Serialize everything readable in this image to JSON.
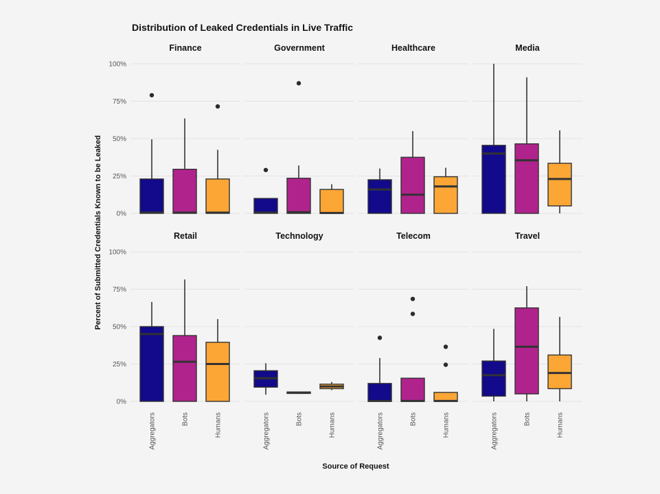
{
  "chart_data": {
    "type": "boxplot",
    "title": "Distribution of Leaked Credentials in Live Traffic",
    "xlabel": "Source of Request",
    "ylabel": "Percent of Submitted Credentials Known to be Leaked",
    "ylim": [
      0,
      100
    ],
    "yticks": [
      "0%",
      "25%",
      "50%",
      "75%",
      "100%"
    ],
    "categories": [
      "Aggregators",
      "Bots",
      "Humans"
    ],
    "colors": {
      "Aggregators": "#120a8a",
      "Bots": "#b0238c",
      "Humans": "#fca636"
    },
    "grid": true,
    "facets": [
      {
        "name": "Finance",
        "boxes": [
          {
            "min": 0,
            "q1": 0,
            "median": 0.5,
            "q3": 23,
            "max": 49.5,
            "outliers": [
              79
            ]
          },
          {
            "min": 0,
            "q1": 0,
            "median": 0.5,
            "q3": 29.5,
            "max": 63.5,
            "outliers": []
          },
          {
            "min": 0,
            "q1": 0,
            "median": 0.5,
            "q3": 23,
            "max": 42.5,
            "outliers": [
              71.5
            ]
          }
        ]
      },
      {
        "name": "Government",
        "boxes": [
          {
            "min": 0,
            "q1": 0,
            "median": 0.5,
            "q3": 10,
            "max": 10,
            "outliers": [
              29
            ]
          },
          {
            "min": 0,
            "q1": 0,
            "median": 0.8,
            "q3": 23.5,
            "max": 32,
            "outliers": [
              87
            ]
          },
          {
            "min": 0,
            "q1": 0,
            "median": 0.3,
            "q3": 16,
            "max": 19.5,
            "outliers": []
          }
        ]
      },
      {
        "name": "Healthcare",
        "boxes": [
          {
            "min": 0,
            "q1": 0,
            "median": 16,
            "q3": 22.5,
            "max": 30,
            "outliers": []
          },
          {
            "min": 0,
            "q1": 0,
            "median": 12.5,
            "q3": 37.5,
            "max": 55,
            "outliers": []
          },
          {
            "min": 0,
            "q1": 0,
            "median": 18,
            "q3": 24.5,
            "max": 30.5,
            "outliers": []
          }
        ]
      },
      {
        "name": "Media",
        "boxes": [
          {
            "min": 0,
            "q1": 0,
            "median": 40,
            "q3": 45.5,
            "max": 100,
            "outliers": []
          },
          {
            "min": 0,
            "q1": 0,
            "median": 35.5,
            "q3": 46.5,
            "max": 91,
            "outliers": []
          },
          {
            "min": 0,
            "q1": 5,
            "median": 23,
            "q3": 33.5,
            "max": 55.5,
            "outliers": []
          }
        ]
      },
      {
        "name": "Retail",
        "boxes": [
          {
            "min": 0,
            "q1": 0,
            "median": 45,
            "q3": 50,
            "max": 66.5,
            "outliers": []
          },
          {
            "min": 0,
            "q1": 0,
            "median": 26.5,
            "q3": 44,
            "max": 81.5,
            "outliers": []
          },
          {
            "min": 0,
            "q1": 0,
            "median": 25,
            "q3": 39.5,
            "max": 55,
            "outliers": []
          }
        ]
      },
      {
        "name": "Technology",
        "boxes": [
          {
            "min": 4.5,
            "q1": 9.5,
            "median": 15.5,
            "q3": 20.5,
            "max": 25.5,
            "outliers": []
          },
          {
            "min": 5,
            "q1": 5.3,
            "median": 5.8,
            "q3": 6.3,
            "max": 6.5,
            "outliers": []
          },
          {
            "min": 7.5,
            "q1": 8.5,
            "median": 10,
            "q3": 11.5,
            "max": 13,
            "outliers": []
          }
        ]
      },
      {
        "name": "Telecom",
        "boxes": [
          {
            "min": 0,
            "q1": 0,
            "median": 0.3,
            "q3": 12,
            "max": 29,
            "outliers": [
              42.5
            ]
          },
          {
            "min": 0,
            "q1": 0,
            "median": 0.3,
            "q3": 15.5,
            "max": 15.5,
            "outliers": [
              58.5,
              68.5
            ]
          },
          {
            "min": 0,
            "q1": 0,
            "median": 0.3,
            "q3": 6,
            "max": 6,
            "outliers": [
              24.5,
              36.5
            ]
          }
        ]
      },
      {
        "name": "Travel",
        "boxes": [
          {
            "min": 0,
            "q1": 3.5,
            "median": 17.5,
            "q3": 27,
            "max": 48.5,
            "outliers": []
          },
          {
            "min": 0,
            "q1": 5,
            "median": 36.5,
            "q3": 62.5,
            "max": 77,
            "outliers": []
          },
          {
            "min": 0,
            "q1": 8.5,
            "median": 19,
            "q3": 31,
            "max": 56.5,
            "outliers": []
          }
        ]
      }
    ]
  }
}
